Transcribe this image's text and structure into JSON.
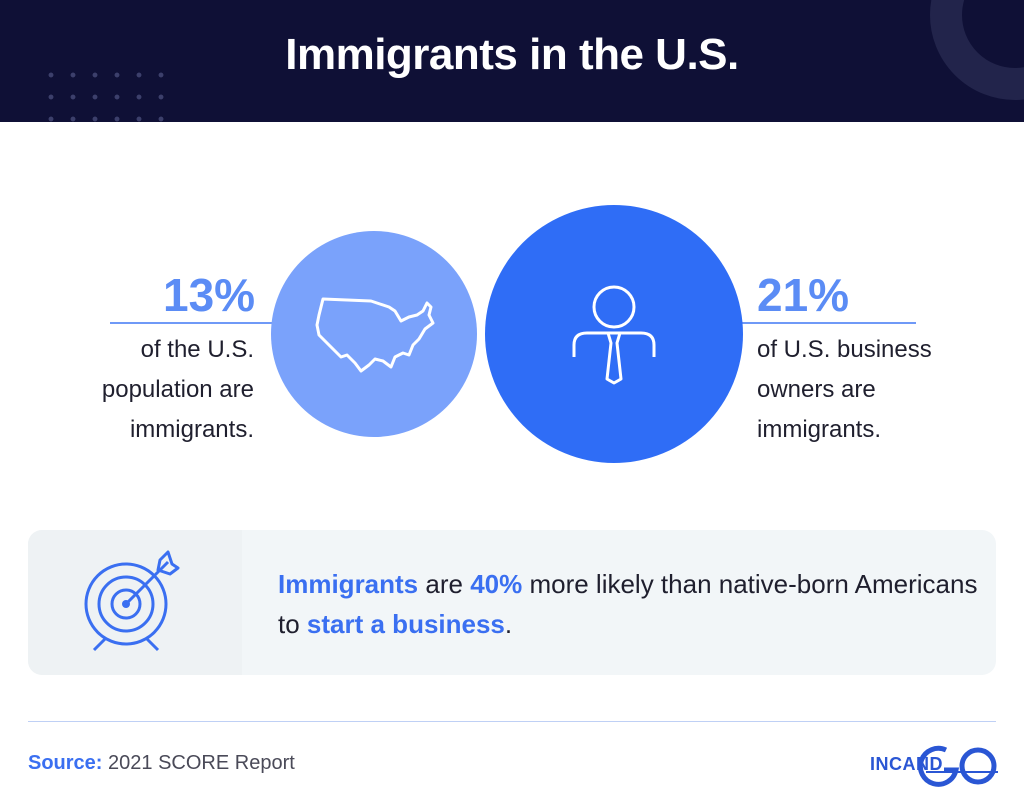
{
  "title": "Immigrants in the U.S.",
  "left_stat": {
    "value": "13%",
    "lines": [
      "of the U.S.",
      "population are",
      "immigrants."
    ]
  },
  "right_stat": {
    "value": "21%",
    "lines": [
      "of U.S. business",
      "owners are",
      "immigrants."
    ]
  },
  "callout": {
    "parts": [
      {
        "text": "Immigrants",
        "highlight": true
      },
      {
        "text": " are ",
        "highlight": false
      },
      {
        "text": "40%",
        "highlight": true
      },
      {
        "text": " more likely than native-born Americans to ",
        "highlight": false
      },
      {
        "text": "start a business",
        "highlight": true
      },
      {
        "text": ".",
        "highlight": false
      }
    ]
  },
  "source": {
    "label": "Source:",
    "text": "2021 SCORE Report"
  },
  "logo": {
    "text": "INC",
    "suffix": "AND"
  },
  "icons": {
    "left_circle": "usa-map-icon",
    "right_circle": "business-person-icon",
    "callout": "target-arrow-icon"
  },
  "colors": {
    "header_bg": "#0f1036",
    "light_blue": "#7aa2fb",
    "bright_blue": "#2f6df6",
    "accent_text": "#3a6ff1"
  }
}
